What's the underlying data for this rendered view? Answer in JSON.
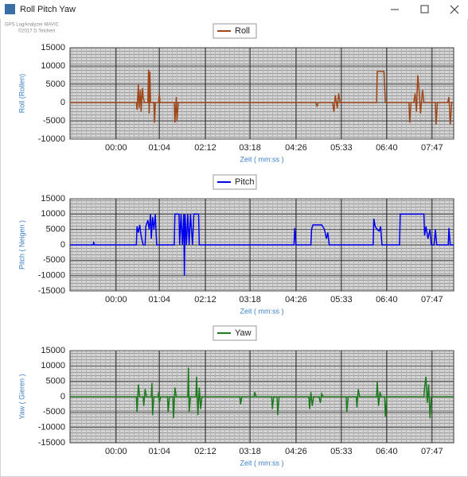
{
  "window": {
    "title": "Roll Pitch Yaw"
  },
  "watermark": [
    "GPS LogAnalyzer MAVIC",
    "©2017 D.Teichert"
  ],
  "chart_data": [
    {
      "type": "line",
      "xlabel": "Zeit ( mm:ss )",
      "ylabel": "Roll (Rollen)",
      "xlim": [
        -68,
        499
      ],
      "ylim": [
        -10000,
        15000
      ],
      "yticks": [
        -10000,
        -5000,
        0,
        5000,
        10000,
        15000
      ],
      "xticks": [
        {
          "value": 0,
          "label": "00:00"
        },
        {
          "value": 64,
          "label": "01:04"
        },
        {
          "value": 132,
          "label": "02:12"
        },
        {
          "value": 198,
          "label": "03:18"
        },
        {
          "value": 266,
          "label": "04:26"
        },
        {
          "value": 333,
          "label": "05:33"
        },
        {
          "value": 400,
          "label": "06:40"
        },
        {
          "value": 467,
          "label": "07:47"
        }
      ],
      "grid": true,
      "series": [
        {
          "name": "Roll",
          "color": "#a0471a",
          "x": [
            -68,
            30,
            31,
            33,
            34,
            36,
            37,
            39,
            40,
            42,
            47,
            48,
            49,
            50,
            51,
            56,
            57,
            58,
            63,
            64,
            65,
            86,
            87,
            89,
            90,
            92,
            295,
            297,
            299,
            320,
            322,
            324,
            327,
            329,
            331,
            385,
            386,
            396,
            398,
            433,
            434,
            436,
            440,
            442,
            444,
            446,
            448,
            450,
            453,
            455,
            472,
            473,
            475,
            490,
            492,
            494,
            496,
            499
          ],
          "values": [
            0,
            0,
            -2000,
            5000,
            -1500,
            3500,
            -2500,
            4000,
            1500,
            0,
            0,
            9000,
            -3000,
            8500,
            0,
            0,
            -5500,
            0,
            0,
            2500,
            0,
            0,
            -5500,
            1500,
            -5000,
            0,
            0,
            -1000,
            0,
            0,
            -2500,
            2000,
            -1500,
            2500,
            0,
            0,
            8500,
            8500,
            0,
            0,
            -5500,
            0,
            0,
            2500,
            -2500,
            7500,
            3000,
            -3000,
            3500,
            0,
            0,
            -6000,
            0,
            0,
            1500,
            -6000,
            0,
            0
          ]
        }
      ]
    },
    {
      "type": "line",
      "xlabel": "Zeit ( mm:ss )",
      "ylabel": "Pitch ( Neigen )",
      "xlim": [
        -68,
        499
      ],
      "ylim": [
        -15000,
        15000
      ],
      "yticks": [
        -15000,
        -10000,
        -5000,
        0,
        5000,
        10000,
        15000
      ],
      "xticks": [
        {
          "value": 0,
          "label": "00:00"
        },
        {
          "value": 64,
          "label": "01:04"
        },
        {
          "value": 132,
          "label": "02:12"
        },
        {
          "value": 198,
          "label": "03:18"
        },
        {
          "value": 266,
          "label": "04:26"
        },
        {
          "value": 333,
          "label": "05:33"
        },
        {
          "value": 400,
          "label": "06:40"
        },
        {
          "value": 467,
          "label": "07:47"
        }
      ],
      "grid": true,
      "series": [
        {
          "name": "Pitch",
          "color": "#0000ee",
          "x": [
            -68,
            -34,
            -33,
            -32,
            30,
            31,
            33,
            35,
            37,
            40,
            43,
            44,
            47,
            49,
            51,
            52,
            54,
            56,
            58,
            60,
            86,
            87,
            93,
            94,
            96,
            98,
            100,
            101,
            102,
            104,
            106,
            108,
            110,
            113,
            115,
            122,
            123,
            263,
            264,
            266,
            288,
            289,
            291,
            304,
            308,
            311,
            313,
            315,
            380,
            381,
            383,
            386,
            389,
            391,
            393,
            419,
            420,
            455,
            456,
            458,
            461,
            464,
            466,
            470,
            472,
            474,
            491,
            492,
            494,
            499
          ],
          "values": [
            0,
            0,
            700,
            0,
            0,
            6000,
            4000,
            6500,
            3000,
            0,
            0,
            6000,
            8000,
            5000,
            10000,
            2000,
            9000,
            5000,
            10000,
            0,
            0,
            10000,
            10000,
            0,
            10000,
            0,
            10000,
            -10000,
            10000,
            0,
            10000,
            0,
            10000,
            0,
            10000,
            10000,
            0,
            0,
            5500,
            0,
            0,
            5000,
            6500,
            6500,
            5000,
            2000,
            4000,
            0,
            0,
            8500,
            6000,
            5000,
            4500,
            6000,
            0,
            0,
            10000,
            10000,
            3000,
            6000,
            2000,
            5000,
            0,
            0,
            5000,
            0,
            0,
            5500,
            0,
            0
          ]
        }
      ]
    },
    {
      "type": "line",
      "xlabel": "Zeit ( mm:ss )",
      "ylabel": "Yaw ( Gieren )",
      "xlim": [
        -68,
        499
      ],
      "ylim": [
        -15000,
        15000
      ],
      "yticks": [
        -15000,
        -10000,
        -5000,
        0,
        5000,
        10000,
        15000
      ],
      "xticks": [
        {
          "value": 0,
          "label": "00:00"
        },
        {
          "value": 64,
          "label": "01:04"
        },
        {
          "value": 132,
          "label": "02:12"
        },
        {
          "value": 198,
          "label": "03:18"
        },
        {
          "value": 266,
          "label": "04:26"
        },
        {
          "value": 333,
          "label": "05:33"
        },
        {
          "value": 400,
          "label": "06:40"
        },
        {
          "value": 467,
          "label": "07:47"
        }
      ],
      "grid": true,
      "series": [
        {
          "name": "Yaw",
          "color": "#1e7a1e",
          "x": [
            -68,
            30,
            31,
            33,
            35,
            40,
            41,
            43,
            45,
            52,
            53,
            54,
            56,
            62,
            63,
            64,
            66,
            76,
            77,
            79,
            84,
            85,
            87,
            89,
            106,
            107,
            108,
            110,
            118,
            119,
            121,
            123,
            125,
            127,
            183,
            184,
            186,
            204,
            205,
            207,
            230,
            231,
            233,
            238,
            239,
            241,
            285,
            286,
            288,
            290,
            292,
            300,
            302,
            304,
            306,
            340,
            341,
            343,
            355,
            356,
            358,
            360,
            385,
            386,
            388,
            390,
            392,
            397,
            398,
            400,
            455,
            456,
            458,
            460,
            462,
            464,
            466,
            499
          ],
          "values": [
            0,
            0,
            -5000,
            4000,
            0,
            0,
            -3000,
            2500,
            0,
            0,
            4500,
            -6000,
            0,
            0,
            1500,
            -2000,
            0,
            0,
            -5000,
            0,
            0,
            -7000,
            3000,
            0,
            0,
            9500,
            -5000,
            0,
            0,
            6500,
            -6000,
            3000,
            -4000,
            0,
            0,
            -2500,
            0,
            0,
            1500,
            0,
            0,
            -4000,
            0,
            0,
            -6000,
            0,
            0,
            -4000,
            1500,
            -3000,
            0,
            0,
            -2000,
            1000,
            0,
            0,
            -5000,
            0,
            0,
            -3500,
            2500,
            0,
            0,
            5000,
            -3000,
            1500,
            0,
            0,
            -6500,
            0,
            0,
            3000,
            6500,
            -2000,
            4000,
            -7000,
            0,
            0
          ]
        }
      ]
    }
  ]
}
